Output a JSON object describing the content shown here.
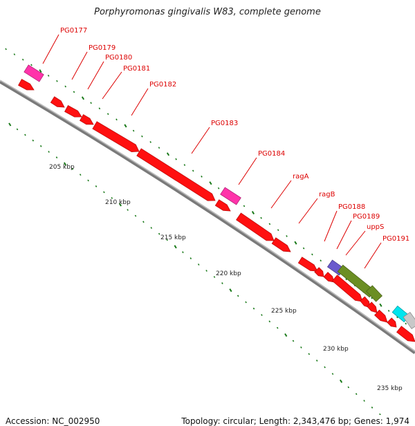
{
  "title": "Porphyromonas gingivalis W83, complete genome",
  "footer": {
    "accession": "Accession: NC_002950",
    "topology": "Topology: circular; Length: 2,343,476 bp; Genes: 1,974"
  },
  "scale_labels": [
    "205 kbp",
    "210 kbp",
    "215 kbp",
    "220 kbp",
    "225 kbp",
    "230 kbp",
    "235 kbp"
  ],
  "gene_labels": [
    "PG0177",
    "PG0179",
    "PG0180",
    "PG0181",
    "PG0182",
    "PG0183",
    "PG0184",
    "ragA",
    "ragB",
    "PG0188",
    "PG0189",
    "uppS",
    "PG0191"
  ],
  "colors": {
    "cds": "#ff1010",
    "cds_dark": "#aa0000",
    "label": "#dd0000",
    "backbone": "#7a7a7a",
    "tick": "#1a7a1a",
    "magenta": "#ff33aa",
    "purple": "#6a5acd",
    "olive": "#6b8e23",
    "cyan": "#00e5ee",
    "grey": "#c8c8c8"
  }
}
